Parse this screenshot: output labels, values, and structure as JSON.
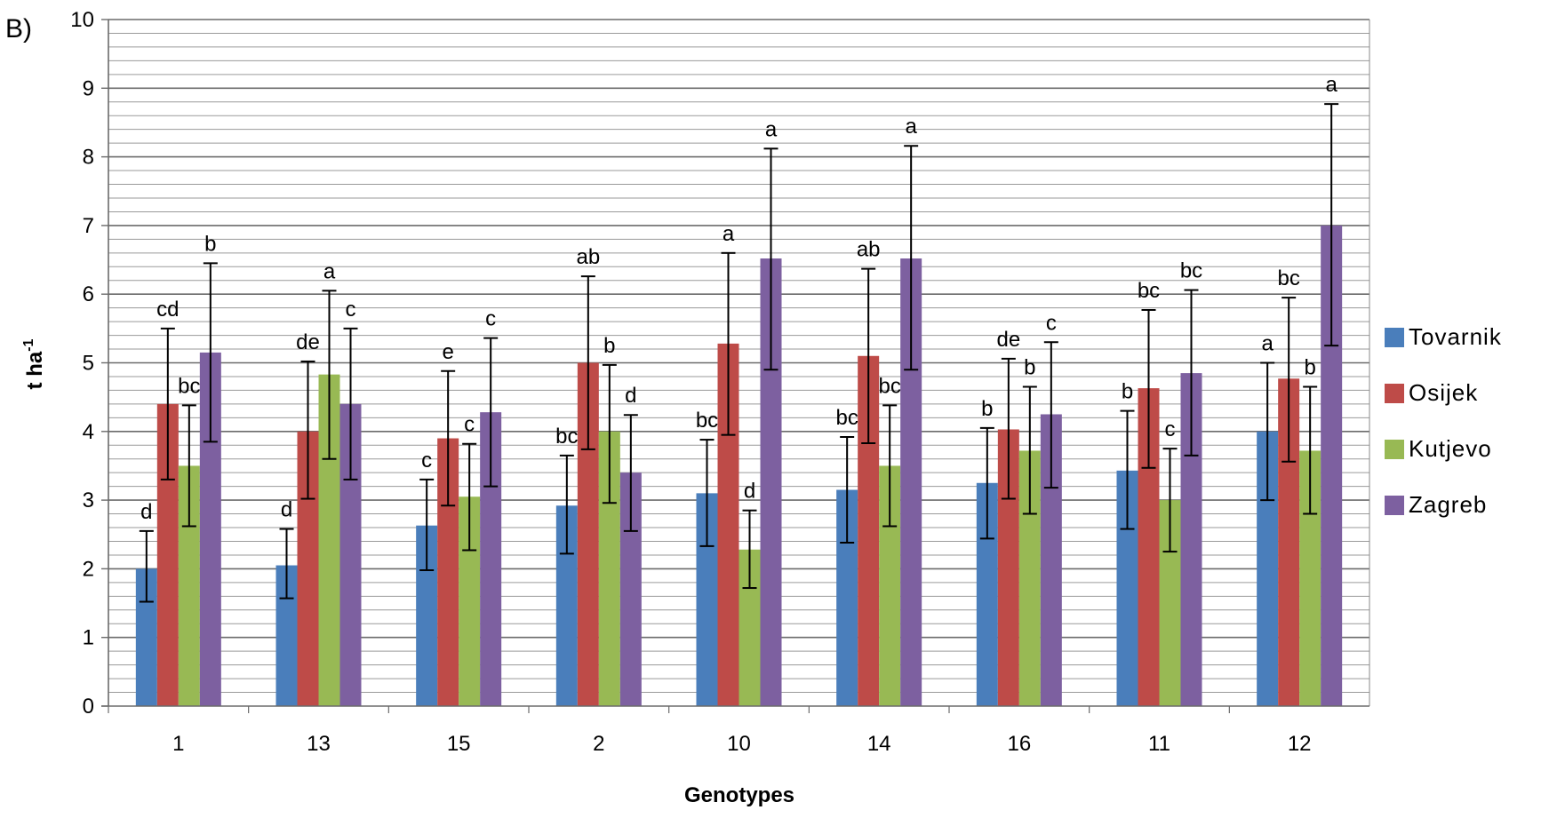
{
  "panel_label": "B)",
  "colors": {
    "Tovarnik": "#4a7ebb",
    "Osijek": "#be4b48",
    "Kutjevo": "#98b954",
    "Zagreb": "#7d60a0"
  },
  "chart_data": {
    "type": "bar",
    "title": "",
    "xlabel": "Genotypes",
    "ylabel": "t ha",
    "ylabel_superscript": "-1",
    "ylim": [
      0,
      10
    ],
    "yticks": [
      0,
      1,
      2,
      3,
      4,
      5,
      6,
      7,
      8,
      9,
      10
    ],
    "minor_grid_step": 0.2,
    "grid": true,
    "legend_position": "right",
    "categories": [
      "1",
      "13",
      "15",
      "2",
      "10",
      "14",
      "16",
      "11",
      "12"
    ],
    "series": [
      {
        "name": "Tovarnik",
        "values": [
          2.0,
          2.05,
          2.63,
          2.92,
          3.1,
          3.15,
          3.25,
          3.43,
          4.0
        ],
        "err_low": [
          1.52,
          1.57,
          1.98,
          2.22,
          2.33,
          2.38,
          2.44,
          2.58,
          3.0
        ],
        "err_high": [
          2.55,
          2.58,
          3.3,
          3.65,
          3.88,
          3.92,
          4.05,
          4.3,
          5.0
        ],
        "sig": [
          "d",
          "d",
          "c",
          "bc",
          "bc",
          "bc",
          "b",
          "b",
          "a"
        ]
      },
      {
        "name": "Osijek",
        "values": [
          4.4,
          4.0,
          3.9,
          5.0,
          5.28,
          5.1,
          4.03,
          4.63,
          4.77
        ],
        "err_low": [
          3.3,
          3.02,
          2.92,
          3.74,
          3.95,
          3.83,
          3.02,
          3.47,
          3.56
        ],
        "err_high": [
          5.5,
          5.02,
          4.88,
          6.26,
          6.6,
          6.37,
          5.06,
          5.77,
          5.95
        ],
        "sig": [
          "cd",
          "de",
          "e",
          "ab",
          "a",
          "ab",
          "de",
          "bc",
          "bc"
        ]
      },
      {
        "name": "Kutjevo",
        "values": [
          3.5,
          4.83,
          3.05,
          4.0,
          2.28,
          3.5,
          3.72,
          3.0,
          3.72
        ],
        "err_low": [
          2.62,
          3.6,
          2.27,
          2.96,
          1.72,
          2.62,
          2.8,
          2.25,
          2.8
        ],
        "err_high": [
          4.38,
          6.05,
          3.82,
          4.97,
          2.85,
          4.38,
          4.65,
          3.75,
          4.65
        ],
        "sig": [
          "bc",
          "a",
          "c",
          "b",
          "d",
          "bc",
          "b",
          "c",
          "b"
        ]
      },
      {
        "name": "Zagreb",
        "values": [
          5.15,
          4.4,
          4.28,
          3.4,
          6.52,
          6.52,
          4.25,
          4.85,
          7.0
        ],
        "err_low": [
          3.85,
          3.3,
          3.2,
          2.55,
          4.9,
          4.9,
          3.18,
          3.65,
          5.25
        ],
        "err_high": [
          6.45,
          5.5,
          5.36,
          4.24,
          8.12,
          8.16,
          5.3,
          6.06,
          8.77
        ],
        "sig": [
          "b",
          "c",
          "c",
          "d",
          "a",
          "a",
          "c",
          "bc",
          "a"
        ]
      }
    ]
  }
}
